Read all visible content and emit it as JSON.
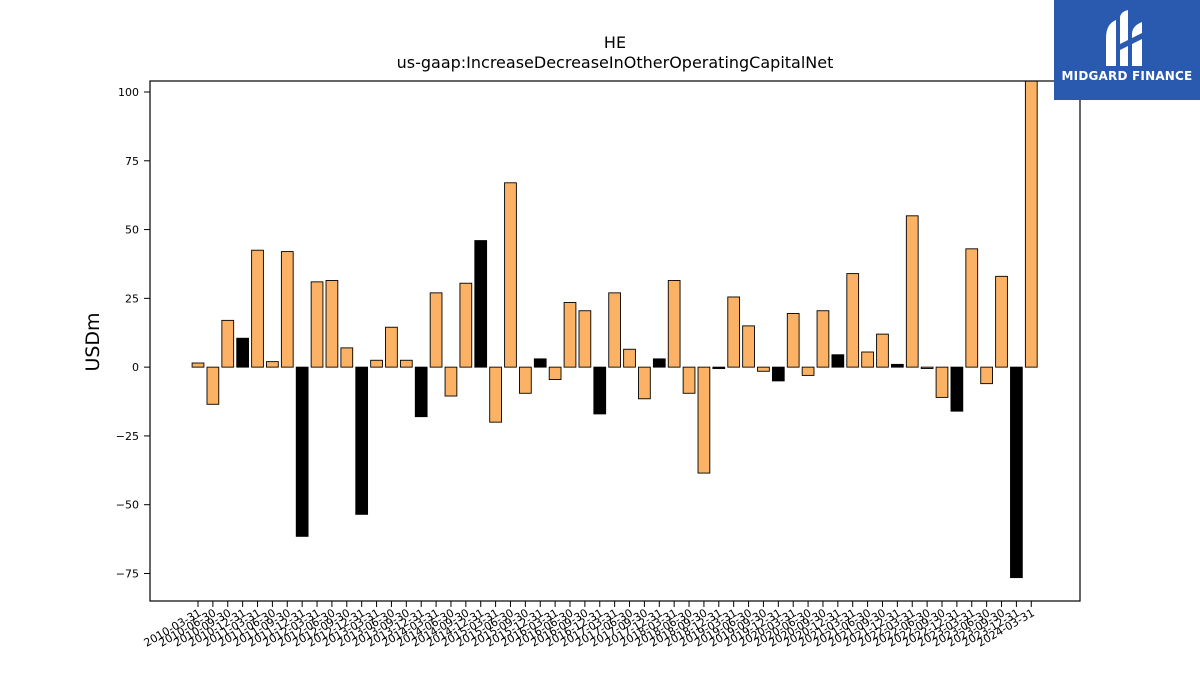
{
  "brand": {
    "name": "MIDGARD FINANCE",
    "bg_color": "#2a5ab0"
  },
  "colors": {
    "positive_bar": "#fbb265",
    "highlight_bar": "#000000",
    "edge": "#000000"
  },
  "chart_data": {
    "type": "bar",
    "title": "HE",
    "subtitle": "us-gaap:IncreaseDecreaseInOtherOperatingCapitalNet",
    "xlabel": "",
    "ylabel": "USDm",
    "ylim": [
      -85,
      104
    ],
    "yticks": [
      100,
      75,
      50,
      25,
      0,
      -25,
      -50,
      -75
    ],
    "ytick_labels": [
      "100",
      "75",
      "50",
      "25",
      "0",
      "−25",
      "−50",
      "−75"
    ],
    "grid": false,
    "categories": [
      "2010-03-31",
      "2010-06-30",
      "2010-09-30",
      "2010-12-31",
      "2011-03-31",
      "2011-06-30",
      "2011-09-30",
      "2011-12-31",
      "2012-03-31",
      "2012-06-30",
      "2012-09-30",
      "2012-12-31",
      "2013-03-31",
      "2013-06-30",
      "2013-09-30",
      "2013-12-31",
      "2014-03-31",
      "2014-06-30",
      "2014-09-30",
      "2014-12-31",
      "2015-03-31",
      "2015-06-30",
      "2015-09-30",
      "2015-12-31",
      "2016-03-31",
      "2016-06-30",
      "2016-09-30",
      "2016-12-31",
      "2017-03-31",
      "2017-06-30",
      "2017-09-30",
      "2017-12-31",
      "2018-03-31",
      "2018-06-30",
      "2018-09-30",
      "2018-12-31",
      "2019-03-31",
      "2019-06-30",
      "2019-09-30",
      "2019-12-31",
      "2020-03-31",
      "2020-06-30",
      "2020-09-30",
      "2020-12-31",
      "2021-03-31",
      "2021-06-30",
      "2021-09-30",
      "2021-12-31",
      "2022-03-31",
      "2022-06-30",
      "2022-09-30",
      "2022-12-31",
      "2023-03-31",
      "2023-06-30",
      "2023-09-30",
      "2023-12-31",
      "2024-03-31"
    ],
    "values": [
      1.5,
      -13.5,
      17,
      10.5,
      42.5,
      2,
      42,
      -61.5,
      31,
      31.5,
      7,
      -53.5,
      2.5,
      14.5,
      2.5,
      -18,
      27,
      -10.5,
      30.5,
      46,
      -20,
      67,
      -9.5,
      3,
      -4.5,
      23.5,
      20.5,
      -17,
      27,
      6.5,
      -11.5,
      3,
      31.5,
      -9.5,
      -38.5,
      -0.5,
      25.5,
      15,
      -1.5,
      -5,
      19.5,
      -3,
      20.5,
      4.5,
      34,
      5.5,
      12,
      1,
      55,
      -0.5,
      -11,
      -16,
      43,
      -6,
      33,
      -76.5,
      104
    ],
    "highlight_year_end": true
  }
}
